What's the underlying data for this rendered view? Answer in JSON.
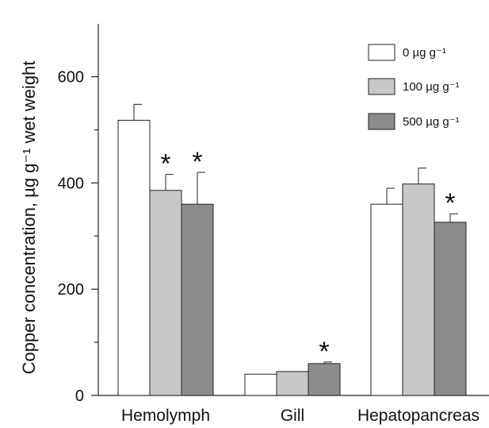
{
  "chart_data": {
    "type": "bar",
    "title": "",
    "xlabel": "",
    "ylabel": "Copper concentration, µg g⁻¹ wet weight",
    "ylim": [
      0,
      700
    ],
    "yticks": [
      0,
      200,
      400,
      600
    ],
    "yminor_ticks": [
      100,
      300,
      500
    ],
    "categories": [
      "Hemolymph",
      "Gill",
      "Hepatopancreas"
    ],
    "series": [
      {
        "name": "0 µg g⁻¹",
        "color": "#ffffff",
        "values": [
          518,
          40,
          360
        ],
        "errors": [
          30,
          0,
          30
        ]
      },
      {
        "name": "100 µg g⁻¹",
        "color": "#c8c8c8",
        "values": [
          386,
          45,
          398
        ],
        "errors": [
          30,
          0,
          30
        ]
      },
      {
        "name": "500 µg g⁻¹",
        "color": "#8c8c8c",
        "values": [
          360,
          60,
          326
        ],
        "errors": [
          60,
          3,
          16
        ]
      }
    ],
    "significance": [
      {
        "series": 1,
        "category": 0,
        "mark": "*"
      },
      {
        "series": 2,
        "category": 0,
        "mark": "*"
      },
      {
        "series": 2,
        "category": 1,
        "mark": "*"
      },
      {
        "series": 2,
        "category": 2,
        "mark": "*"
      }
    ],
    "legend_position": "top-right",
    "grid": false
  }
}
